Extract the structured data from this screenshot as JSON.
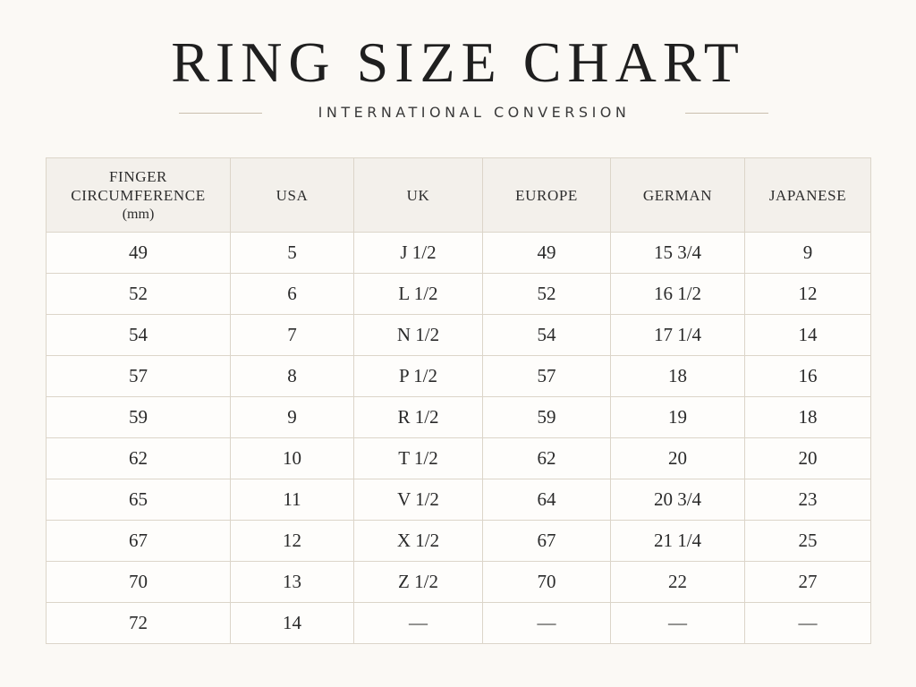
{
  "title": "RING SIZE CHART",
  "subtitle": "INTERNATIONAL CONVERSION",
  "table": {
    "headers": {
      "circumference_line1": "FINGER",
      "circumference_line2": "CIRCUMFERENCE",
      "circumference_unit": "(mm)",
      "usa": "USA",
      "uk": "UK",
      "europe": "EUROPE",
      "german": "GERMAN",
      "japanese": "JAPANESE"
    },
    "rows": [
      [
        "49",
        "5",
        "J 1/2",
        "49",
        "15 3/4",
        "9"
      ],
      [
        "52",
        "6",
        "L 1/2",
        "52",
        "16 1/2",
        "12"
      ],
      [
        "54",
        "7",
        "N 1/2",
        "54",
        "17 1/4",
        "14"
      ],
      [
        "57",
        "8",
        "P 1/2",
        "57",
        "18",
        "16"
      ],
      [
        "59",
        "9",
        "R 1/2",
        "59",
        "19",
        "18"
      ],
      [
        "62",
        "10",
        "T 1/2",
        "62",
        "20",
        "20"
      ],
      [
        "65",
        "11",
        "V 1/2",
        "64",
        "20 3/4",
        "23"
      ],
      [
        "67",
        "12",
        "X 1/2",
        "67",
        "21 1/4",
        "25"
      ],
      [
        "70",
        "13",
        "Z 1/2",
        "70",
        "22",
        "27"
      ],
      [
        "72",
        "14",
        "—",
        "—",
        "—",
        "—"
      ]
    ]
  }
}
